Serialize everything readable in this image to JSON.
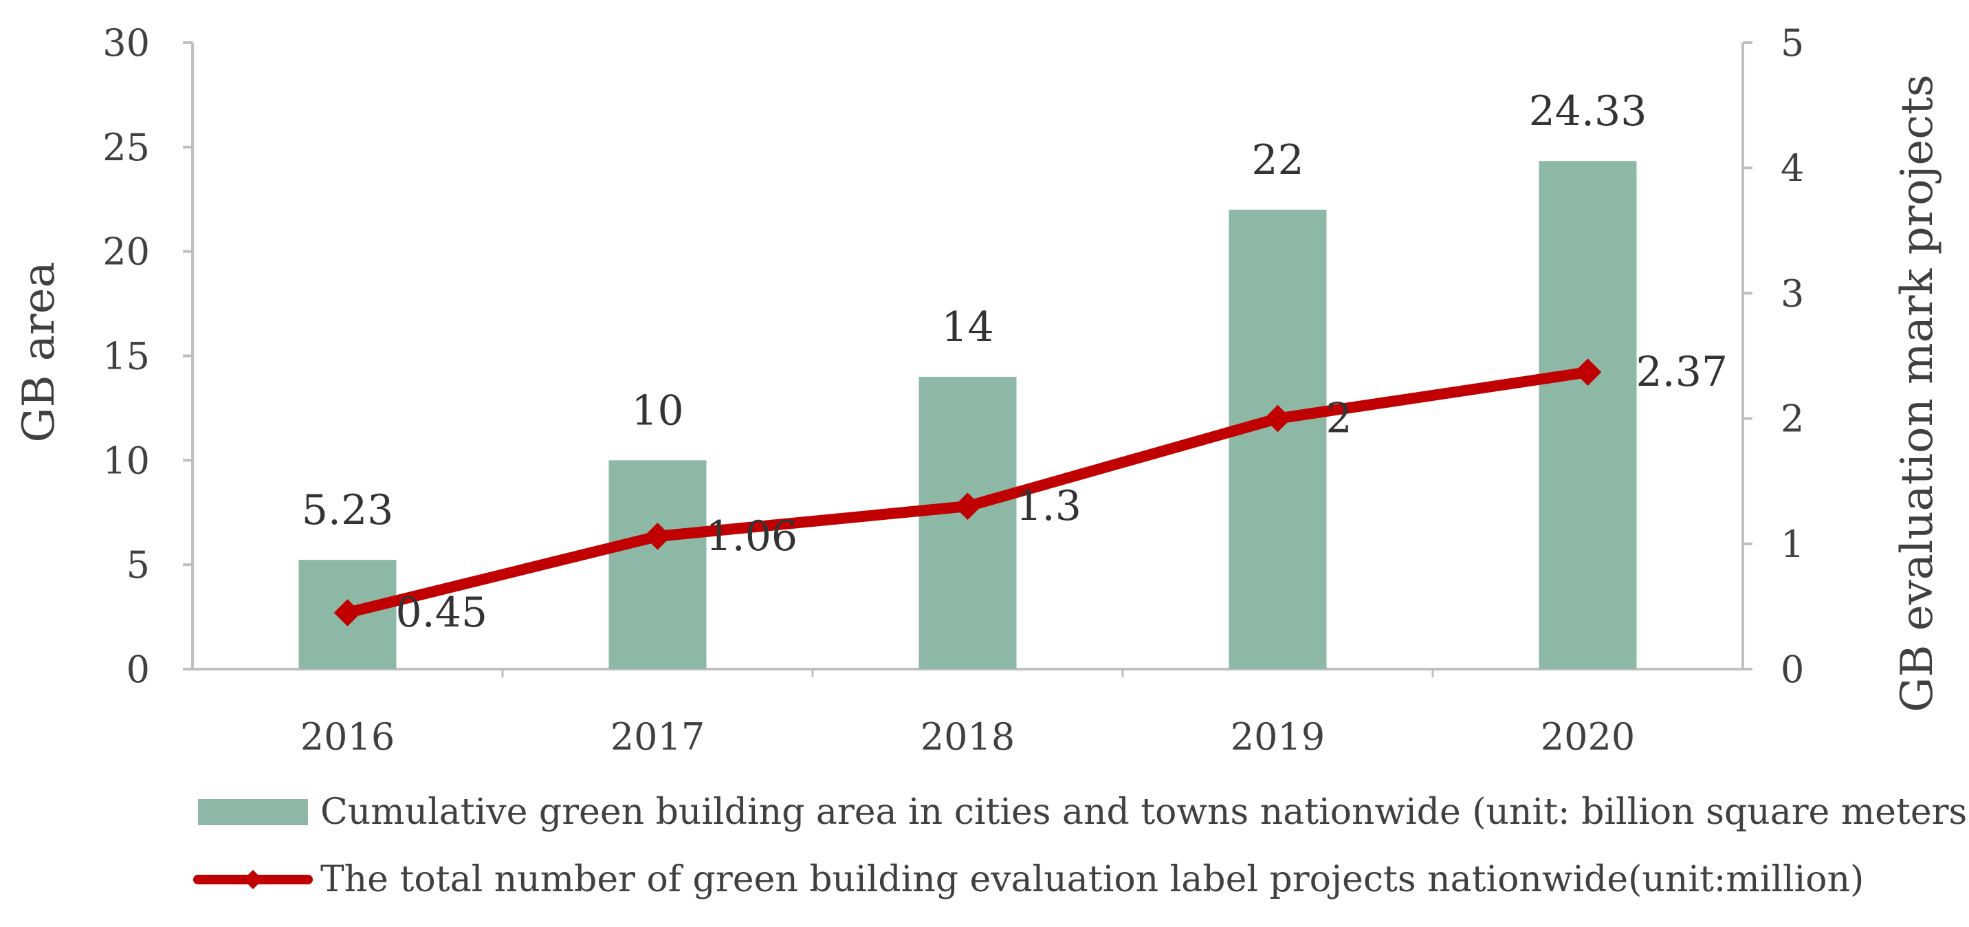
{
  "chart_data": {
    "type": "bar+line",
    "categories": [
      "2016",
      "2017",
      "2018",
      "2019",
      "2020"
    ],
    "series": [
      {
        "name": "Cumulative green building area in cities and towns nationwide (unit: billion square meters)",
        "type": "bar",
        "axis": "left",
        "values": [
          5.23,
          10,
          14,
          22,
          24.33
        ],
        "labels": [
          "5.23",
          "10",
          "14",
          "22",
          "24.33"
        ],
        "color": "#8db8a6"
      },
      {
        "name": "The total number of green building evaluation label projects nationwide(unit:million)",
        "type": "line",
        "axis": "right",
        "values": [
          0.45,
          1.06,
          1.3,
          2,
          2.37
        ],
        "labels": [
          "0.45",
          "1.06",
          "1.3",
          "2",
          "2.37"
        ],
        "color": "#c00000"
      }
    ],
    "ylabel_left": "GB area",
    "ylabel_right": "GB evaluation mark projects",
    "ylim_left": [
      0,
      30
    ],
    "yticks_left": [
      0,
      5,
      10,
      15,
      20,
      25,
      30
    ],
    "ylim_right": [
      0,
      5
    ],
    "yticks_right": [
      0,
      1,
      2,
      3,
      4,
      5
    ],
    "legend_position": "bottom",
    "grid": false
  }
}
